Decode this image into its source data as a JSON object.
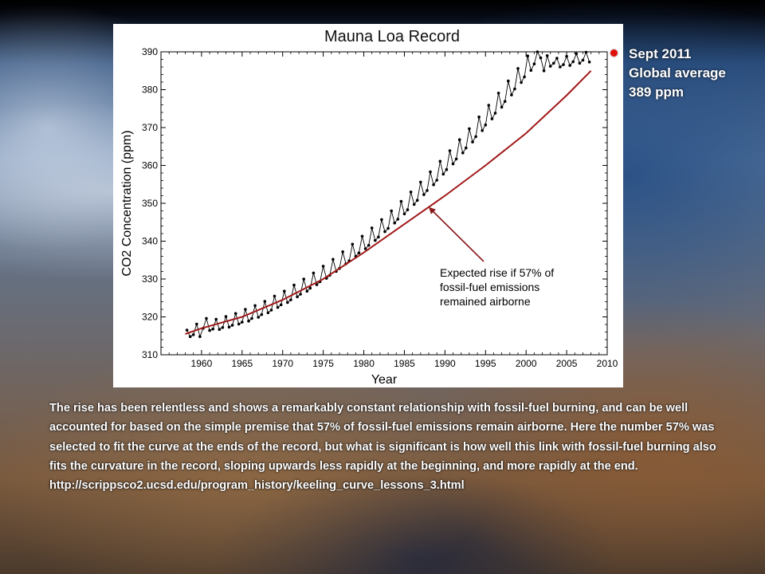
{
  "callout": {
    "lines": [
      "Sept 2011",
      "Global average",
      "389 ppm"
    ],
    "marker_color": "#e0100c"
  },
  "body": {
    "paragraph": "The rise has been relentless and shows a remarkably constant relationship with fossil-fuel burning, and can be well accounted for based on the simple premise that 57% of fossil-fuel emissions remain airborne. Here the number 57% was selected to fit the curve at the ends of the record, but what is significant is how well this link with fossil-fuel burning also fits the curvature in the record, sloping upwards less rapidly at the beginning, and more rapidly at the end.",
    "url": "http://scrippsco2.ucsd.edu/program_history/keeling_curve_lessons_3.html"
  },
  "chart_data": {
    "type": "line",
    "title": "Mauna Loa Record",
    "xlabel": "Year",
    "ylabel": "CO2 Concentration (ppm)",
    "xlim": [
      1955,
      2010
    ],
    "ylim": [
      310,
      390
    ],
    "x_ticks": [
      1960,
      1965,
      1970,
      1975,
      1980,
      1985,
      1990,
      1995,
      2000,
      2005,
      2010
    ],
    "y_ticks": [
      310,
      320,
      330,
      340,
      350,
      360,
      370,
      380,
      390
    ],
    "grid": false,
    "legend": "none",
    "annotation": {
      "lines": [
        "Expected rise if 57% of",
        "fossil-fuel emissions",
        "remained airborne"
      ],
      "points_to": [
        1988,
        349
      ]
    },
    "series": [
      {
        "kind": "monthly-observations",
        "color": "#000000",
        "note": "monthly values with seasonal cycle, amplitude about 3 ppm",
        "x": [
          1958.2,
          1958.6,
          1959.0,
          1959.4,
          1959.8,
          1960.2,
          1960.6,
          1961.0,
          1961.4,
          1961.8,
          1962.2,
          1962.6,
          1963.0,
          1963.4,
          1963.8,
          1964.2,
          1964.6,
          1965.0,
          1965.4,
          1965.8,
          1966.2,
          1966.6,
          1967.0,
          1967.4,
          1967.8,
          1968.2,
          1968.6,
          1969.0,
          1969.4,
          1969.8,
          1970.2,
          1970.6,
          1971.0,
          1971.4,
          1971.8,
          1972.2,
          1972.6,
          1973.0,
          1973.4,
          1973.8,
          1974.2,
          1974.6,
          1975.0,
          1975.4,
          1975.8,
          1976.2,
          1976.6,
          1977.0,
          1977.4,
          1977.8,
          1978.2,
          1978.6,
          1979.0,
          1979.4,
          1979.8,
          1980.2,
          1980.6,
          1981.0,
          1981.4,
          1981.8,
          1982.2,
          1982.6,
          1983.0,
          1983.4,
          1983.8,
          1984.2,
          1984.6,
          1985.0,
          1985.4,
          1985.8,
          1986.2,
          1986.6,
          1987.0,
          1987.4,
          1987.8,
          1988.2,
          1988.6,
          1989.0,
          1989.4,
          1989.8,
          1990.2,
          1990.6,
          1991.0,
          1991.4,
          1991.8,
          1992.2,
          1992.6,
          1993.0,
          1993.4,
          1993.8,
          1994.2,
          1994.6,
          1995.0,
          1995.4,
          1995.8,
          1996.2,
          1996.6,
          1997.0,
          1997.4,
          1997.8,
          1998.2,
          1998.6,
          1999.0,
          1999.4,
          1999.8,
          2000.2,
          2000.6,
          2001.0,
          2001.4,
          2001.8,
          2002.2,
          2002.6,
          2003.0,
          2003.4,
          2003.8,
          2004.2,
          2004.6,
          2005.0,
          2005.4,
          2005.8,
          2006.2,
          2006.6,
          2007.0,
          2007.4,
          2007.8
        ],
        "y": [
          316.5,
          314.8,
          315.3,
          318.1,
          314.8,
          317.0,
          319.6,
          316.4,
          316.8,
          319.4,
          316.7,
          317.2,
          320.1,
          317.3,
          317.8,
          320.9,
          318.1,
          318.6,
          322.0,
          318.9,
          319.6,
          323.0,
          319.9,
          320.6,
          324.1,
          321.1,
          321.8,
          325.5,
          322.5,
          323.2,
          326.8,
          323.8,
          324.5,
          328.4,
          325.3,
          326.0,
          330.0,
          326.8,
          327.6,
          331.6,
          328.5,
          329.3,
          333.4,
          330.2,
          331.0,
          335.2,
          332.0,
          332.8,
          337.2,
          334.0,
          334.8,
          339.2,
          336.0,
          336.9,
          341.3,
          338.0,
          338.9,
          343.5,
          340.2,
          341.1,
          345.7,
          342.5,
          343.4,
          348.0,
          344.8,
          345.8,
          350.5,
          347.2,
          348.3,
          353.0,
          349.7,
          350.8,
          355.6,
          352.3,
          353.4,
          358.3,
          354.9,
          356.1,
          361.1,
          357.7,
          358.9,
          363.9,
          360.4,
          361.7,
          366.8,
          363.3,
          364.6,
          369.7,
          366.2,
          367.6,
          372.8,
          369.2,
          370.7,
          375.9,
          372.3,
          373.8,
          379.1,
          375.4,
          376.9,
          382.3,
          378.6,
          380.2,
          385.6,
          381.9,
          383.4,
          388.9,
          385.1,
          386.8,
          390.0,
          388.4,
          385.0,
          389.0,
          386.2,
          387.0,
          388.3,
          386.0,
          386.6,
          388.8,
          386.4,
          387.4,
          389.5,
          387.0,
          387.8,
          389.9,
          387.3
        ]
      },
      {
        "name": "Expected rise if 57% of fossil-fuel emissions remained airborne",
        "kind": "fit-curve",
        "color": "#a01818",
        "x": [
          1958,
          1960,
          1965,
          1970,
          1975,
          1980,
          1985,
          1990,
          1995,
          2000,
          2005,
          2008
        ],
        "y": [
          315.5,
          317.0,
          320.0,
          324.5,
          330.0,
          337.0,
          344.5,
          352.0,
          360.0,
          368.5,
          378.5,
          385.0
        ]
      }
    ]
  }
}
